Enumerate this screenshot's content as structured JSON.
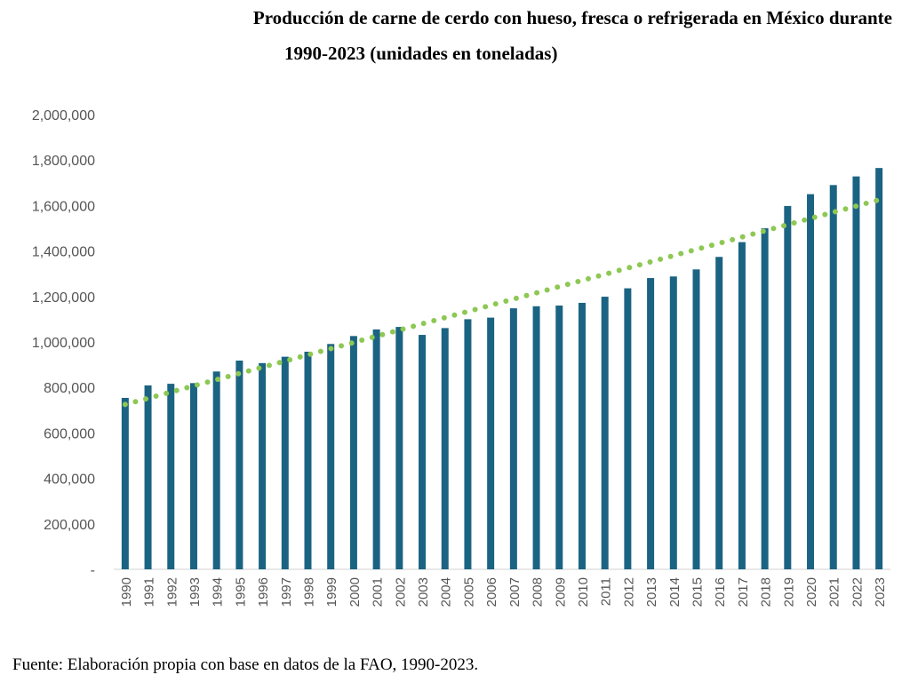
{
  "chart_data": {
    "type": "bar",
    "title_line1": "Producción de carne de cerdo con hueso, fresca o refrigerada en México durante",
    "title_line2": "1990-2023 (unidades en toneladas)",
    "xlabel": "",
    "ylabel": "",
    "ylim": [
      0,
      2000000
    ],
    "yticks": [
      0,
      200000,
      400000,
      600000,
      800000,
      1000000,
      1200000,
      1400000,
      1600000,
      1800000,
      2000000
    ],
    "ytick_labels": [
      "-",
      "200,000",
      "400,000",
      "600,000",
      "800,000",
      "1,000,000",
      "1,200,000",
      "1,400,000",
      "1,600,000",
      "1,800,000",
      "2,000,000"
    ],
    "categories": [
      "1990",
      "1991",
      "1992",
      "1993",
      "1994",
      "1995",
      "1996",
      "1997",
      "1998",
      "1999",
      "2000",
      "2001",
      "2002",
      "2003",
      "2004",
      "2005",
      "2006",
      "2007",
      "2008",
      "2009",
      "2010",
      "2011",
      "2012",
      "2013",
      "2014",
      "2015",
      "2016",
      "2017",
      "2018",
      "2019",
      "2020",
      "2021",
      "2022",
      "2023"
    ],
    "values": [
      754000,
      809000,
      816000,
      819000,
      870000,
      918000,
      907000,
      935000,
      957000,
      991000,
      1026000,
      1055000,
      1066000,
      1031000,
      1061000,
      1100000,
      1107000,
      1148000,
      1157000,
      1160000,
      1172000,
      1199000,
      1236000,
      1281000,
      1288000,
      1319000,
      1374000,
      1439000,
      1500000,
      1598000,
      1650000,
      1690000,
      1728000,
      1765000
    ],
    "trendline": {
      "type": "linear",
      "start": 725000,
      "end": 1625000
    },
    "bar_color": "#1b6382",
    "trend_color": "#8dc853",
    "grid": false,
    "legend": "none"
  },
  "footer": "Fuente: Elaboración propia con base en datos de la FAO, 1990-2023."
}
